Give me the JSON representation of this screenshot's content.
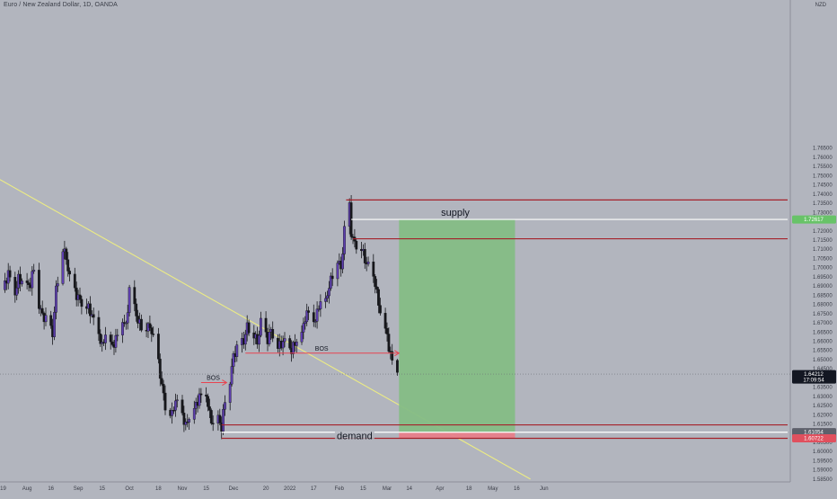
{
  "header": {
    "symbol_title": "Euro / New Zealand Dollar, 1D, OANDA",
    "currency": "NZD"
  },
  "colors": {
    "background": "#b2b5be",
    "candle_up": "#5e3fb0",
    "candle_down": "#16171b",
    "trendline": "#ecec84",
    "zone_line": "#a5222b",
    "white_line": "#ffffff",
    "target_fill": "#85bd85",
    "stop_fill": "#e87f8a",
    "annotation_red": "#e84450",
    "badge_green": "#68c368",
    "badge_red": "#e0505e",
    "badge_dark": "#131722"
  },
  "chart_data": {
    "type": "candlestick",
    "instrument": "EURNZD",
    "timeframe": "1D",
    "ylim": [
      1.583,
      1.77
    ],
    "y_ticks": [
      "1.76500",
      "1.76000",
      "1.75500",
      "1.75000",
      "1.74500",
      "1.74000",
      "1.73500",
      "1.73000",
      "1.72500",
      "1.72000",
      "1.71500",
      "1.71000",
      "1.70500",
      "1.70000",
      "1.69500",
      "1.69000",
      "1.68500",
      "1.68000",
      "1.67500",
      "1.67000",
      "1.66500",
      "1.66000",
      "1.65500",
      "1.65000",
      "1.64500",
      "1.64000",
      "1.63500",
      "1.63000",
      "1.62500",
      "1.62000",
      "1.61500",
      "1.61000",
      "1.60500",
      "1.60000",
      "1.59500",
      "1.59000",
      "1.58500"
    ],
    "x_ticks": [
      {
        "label": "19",
        "date": "2021-07-19"
      },
      {
        "label": "Aug",
        "date": "2021-08-02"
      },
      {
        "label": "16",
        "date": "2021-08-16"
      },
      {
        "label": "Sep",
        "date": "2021-09-01"
      },
      {
        "label": "15",
        "date": "2021-09-15"
      },
      {
        "label": "Oct",
        "date": "2021-10-01"
      },
      {
        "label": "18",
        "date": "2021-10-18"
      },
      {
        "label": "Nov",
        "date": "2021-11-01"
      },
      {
        "label": "15",
        "date": "2021-11-15"
      },
      {
        "label": "Dec",
        "date": "2021-12-01"
      },
      {
        "label": "20",
        "date": "2021-12-20"
      },
      {
        "label": "2022",
        "date": "2022-01-03"
      },
      {
        "label": "17",
        "date": "2022-01-17"
      },
      {
        "label": "Feb",
        "date": "2022-02-01"
      },
      {
        "label": "15",
        "date": "2022-02-15"
      },
      {
        "label": "Mar",
        "date": "2022-03-01"
      },
      {
        "label": "14",
        "date": "2022-03-14"
      },
      {
        "label": "Apr",
        "date": "2022-04-01"
      },
      {
        "label": "18",
        "date": "2022-04-18"
      },
      {
        "label": "May",
        "date": "2022-05-02"
      },
      {
        "label": "16",
        "date": "2022-05-16"
      },
      {
        "label": "Jun",
        "date": "2022-06-01"
      }
    ],
    "close_path": [
      [
        "2021-07-19",
        1.688
      ],
      [
        "2021-07-22",
        1.697
      ],
      [
        "2021-07-26",
        1.686
      ],
      [
        "2021-07-28",
        1.694
      ],
      [
        "2021-08-02",
        1.69
      ],
      [
        "2021-08-04",
        1.691
      ],
      [
        "2021-08-06",
        1.7
      ],
      [
        "2021-08-09",
        1.68
      ],
      [
        "2021-08-11",
        1.674
      ],
      [
        "2021-08-13",
        1.672
      ],
      [
        "2021-08-17",
        1.664
      ],
      [
        "2021-08-19",
        1.688
      ],
      [
        "2021-08-23",
        1.711
      ],
      [
        "2021-08-25",
        1.705
      ],
      [
        "2021-08-27",
        1.694
      ],
      [
        "2021-08-31",
        1.685
      ],
      [
        "2021-09-03",
        1.681
      ],
      [
        "2021-09-07",
        1.678
      ],
      [
        "2021-09-09",
        1.674
      ],
      [
        "2021-09-13",
        1.664
      ],
      [
        "2021-09-15",
        1.657
      ],
      [
        "2021-09-17",
        1.664
      ],
      [
        "2021-09-21",
        1.657
      ],
      [
        "2021-09-23",
        1.661
      ],
      [
        "2021-09-27",
        1.672
      ],
      [
        "2021-09-29",
        1.668
      ],
      [
        "2021-10-01",
        1.688
      ],
      [
        "2021-10-04",
        1.678
      ],
      [
        "2021-10-06",
        1.671
      ],
      [
        "2021-10-08",
        1.668
      ],
      [
        "2021-10-12",
        1.668
      ],
      [
        "2021-10-14",
        1.666
      ],
      [
        "2021-10-18",
        1.648
      ],
      [
        "2021-10-20",
        1.636
      ],
      [
        "2021-10-22",
        1.625
      ],
      [
        "2021-10-26",
        1.62
      ],
      [
        "2021-10-28",
        1.628
      ],
      [
        "2021-11-01",
        1.62
      ],
      [
        "2021-11-03",
        1.614
      ],
      [
        "2021-11-05",
        1.619
      ],
      [
        "2021-11-09",
        1.625
      ],
      [
        "2021-11-11",
        1.63
      ],
      [
        "2021-11-15",
        1.631
      ],
      [
        "2021-11-17",
        1.62
      ],
      [
        "2021-11-19",
        1.615
      ],
      [
        "2021-11-22",
        1.618
      ],
      [
        "2021-11-24",
        1.613
      ],
      [
        "2021-11-26",
        1.628
      ],
      [
        "2021-11-29",
        1.639
      ],
      [
        "2021-12-01",
        1.652
      ],
      [
        "2021-12-03",
        1.656
      ],
      [
        "2021-12-07",
        1.66
      ],
      [
        "2021-12-09",
        1.668
      ],
      [
        "2021-12-13",
        1.664
      ],
      [
        "2021-12-15",
        1.659
      ],
      [
        "2021-12-17",
        1.67
      ],
      [
        "2021-12-21",
        1.661
      ],
      [
        "2021-12-23",
        1.666
      ],
      [
        "2021-12-27",
        1.657
      ],
      [
        "2021-12-31",
        1.66
      ],
      [
        "2022-01-04",
        1.655
      ],
      [
        "2022-01-06",
        1.659
      ],
      [
        "2022-01-10",
        1.664
      ],
      [
        "2022-01-12",
        1.673
      ],
      [
        "2022-01-14",
        1.676
      ],
      [
        "2022-01-18",
        1.671
      ],
      [
        "2022-01-20",
        1.68
      ],
      [
        "2022-01-24",
        1.681
      ],
      [
        "2022-01-26",
        1.69
      ],
      [
        "2022-01-28",
        1.696
      ],
      [
        "2022-01-31",
        1.705
      ],
      [
        "2022-02-02",
        1.699
      ],
      [
        "2022-02-04",
        1.72
      ],
      [
        "2022-02-07",
        1.733
      ],
      [
        "2022-02-08",
        1.719
      ],
      [
        "2022-02-10",
        1.713
      ],
      [
        "2022-02-14",
        1.711
      ],
      [
        "2022-02-16",
        1.704
      ],
      [
        "2022-02-18",
        1.701
      ],
      [
        "2022-02-22",
        1.692
      ],
      [
        "2022-02-24",
        1.68
      ],
      [
        "2022-02-28",
        1.667
      ],
      [
        "2022-03-02",
        1.657
      ],
      [
        "2022-03-04",
        1.649
      ],
      [
        "2022-03-07",
        1.643
      ]
    ],
    "trendline": {
      "from": [
        "2021-07-15",
        1.749
      ],
      "to": [
        "2022-05-24",
        1.585
      ]
    },
    "horizontal_levels": [
      {
        "name": "supply top",
        "price": 1.7368,
        "from": "2022-02-05",
        "color": "#a5222b"
      },
      {
        "name": "supply mid",
        "price": 1.7262,
        "from": "2022-02-08",
        "color": "#ffffff"
      },
      {
        "name": "supply bottom",
        "price": 1.7157,
        "from": "2022-02-09",
        "color": "#a5222b"
      },
      {
        "name": "demand top",
        "price": 1.6145,
        "from": "2021-11-24",
        "color": "#a5222b"
      },
      {
        "name": "demand mid",
        "price": 1.6105,
        "from": "2021-11-24",
        "color": "#ffffff"
      },
      {
        "name": "demand bottom",
        "price": 1.6072,
        "from": "2021-11-24",
        "color": "#a5222b"
      }
    ],
    "position": {
      "entry": 1.6105,
      "target": 1.7262,
      "stop": 1.6072,
      "start": "2022-03-08",
      "end": "2022-05-15"
    },
    "bos": [
      {
        "price": 1.6375,
        "from": "2021-11-12",
        "to": "2021-11-27",
        "label": "BOS"
      },
      {
        "price": 1.6535,
        "from": "2021-12-08",
        "to": "2022-03-08",
        "label": "BOS"
      }
    ],
    "zone_labels": [
      {
        "text": "supply",
        "price": 1.73,
        "date": "2022-04-10"
      },
      {
        "text": "demand",
        "price": 1.6085,
        "date": "2022-02-10"
      }
    ],
    "price_badges": [
      {
        "price": 1.72617,
        "text": "1.72617",
        "style": "green"
      },
      {
        "price": 1.64212,
        "text": "1.64212",
        "sub": "17:09:54",
        "style": "dark"
      },
      {
        "price": 1.61054,
        "text": "1.61054",
        "style": "grey"
      },
      {
        "price": 1.60722,
        "text": "1.60722",
        "style": "red"
      }
    ],
    "current_price": 1.64212
  }
}
